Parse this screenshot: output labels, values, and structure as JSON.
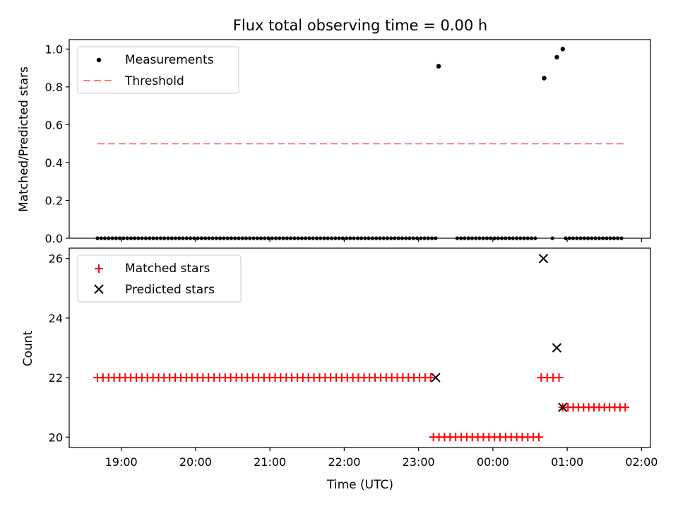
{
  "chart_data": [
    {
      "type": "scatter",
      "title": "Flux total observing time = 0.00 h",
      "xlabel": "",
      "ylabel": "Matched/Predicted stars",
      "ylim": [
        0,
        1.05
      ],
      "yticks": [
        "0.0",
        "0.2",
        "0.4",
        "0.6",
        "0.8",
        "1.0"
      ],
      "ytick_values": [
        0,
        0.2,
        0.4,
        0.6,
        0.8,
        1.0
      ],
      "legend": {
        "placement": "top-left",
        "entries": [
          "Measurements",
          "Threshold"
        ]
      },
      "threshold": {
        "name": "Threshold",
        "y": 0.5,
        "x_start_hours": 18.68,
        "x_end_hours": 25.78,
        "color": "#ff7f7f"
      },
      "measurements": {
        "name": "Measurements",
        "color": "#000000",
        "x_start_hours": 18.68,
        "x_step_hours": 0.05,
        "zero_count_segment1": 96,
        "zero_segment2_start_hours": 23.52,
        "zero_segment2_count": 22,
        "zero_extra_hours": [
          24.8
        ],
        "zero_segment3_start_hours": 24.98,
        "zero_segment3_count": 16,
        "high_points": [
          {
            "x_hours": 23.27,
            "y": 0.909
          },
          {
            "x_hours": 24.69,
            "y": 0.846
          },
          {
            "x_hours": 24.86,
            "y": 0.957
          },
          {
            "x_hours": 24.94,
            "y": 1.0
          }
        ]
      }
    },
    {
      "type": "scatter",
      "title": "",
      "xlabel": "Time (UTC)",
      "ylabel": "Count",
      "ylim": [
        19.65,
        26.35
      ],
      "yticks": [
        "20",
        "22",
        "24",
        "26"
      ],
      "ytick_values": [
        20,
        22,
        24,
        26
      ],
      "xticks": [
        "19:00",
        "20:00",
        "21:00",
        "22:00",
        "23:00",
        "00:00",
        "01:00",
        "02:00"
      ],
      "xtick_hours": [
        19,
        20,
        21,
        22,
        23,
        24,
        25,
        26
      ],
      "xlim_hours": [
        18.3,
        26.12
      ],
      "legend": {
        "placement": "top-left",
        "entries": [
          "Matched stars",
          "Predicted stars"
        ]
      },
      "matched": {
        "name": "Matched stars",
        "color": "#ff0000",
        "runs": [
          {
            "value": 22,
            "start_hours": 18.68,
            "end_hours": 23.17,
            "step_hours": 0.0747
          },
          {
            "value": 20,
            "start_hours": 23.2,
            "end_hours": 24.62,
            "step_hours": 0.0747
          },
          {
            "value": 22,
            "start_hours": 24.65,
            "end_hours": 24.89,
            "step_hours": 0.08
          },
          {
            "value": 21,
            "start_hours": 24.94,
            "end_hours": 25.78,
            "step_hours": 0.07
          }
        ]
      },
      "predicted": {
        "name": "Predicted stars",
        "color": "#000000",
        "points": [
          {
            "x_hours": 23.23,
            "y": 22
          },
          {
            "x_hours": 24.68,
            "y": 26
          },
          {
            "x_hours": 24.86,
            "y": 23
          },
          {
            "x_hours": 24.94,
            "y": 21
          }
        ]
      }
    }
  ]
}
